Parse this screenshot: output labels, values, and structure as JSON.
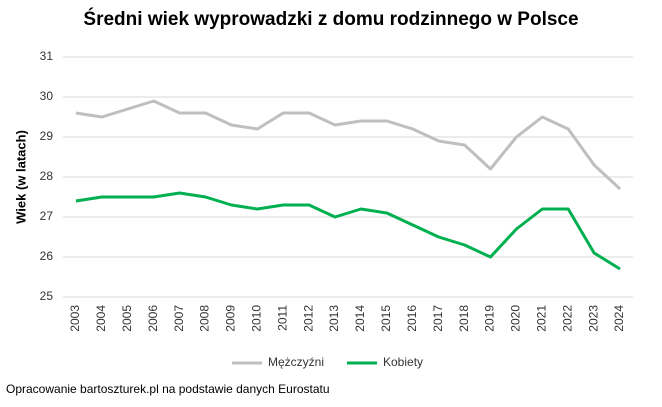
{
  "chart_data": {
    "type": "line",
    "title": "Średni wiek wyprowadzki z domu rodzinnego w Polsce",
    "y_label": "Wiek (w latach)",
    "source": "Opracowanie bartoszturek.pl na podstawie danych Eurostatu",
    "categories": [
      "2003",
      "2004",
      "2005",
      "2006",
      "2007",
      "2008",
      "2009",
      "2010",
      "2011",
      "2012",
      "2013",
      "2014",
      "2015",
      "2016",
      "2017",
      "2018",
      "2019",
      "2020",
      "2021",
      "2022",
      "2023",
      "2024"
    ],
    "series": [
      {
        "name": "Mężczyźni",
        "color": "#bfbfbf",
        "values": [
          29.6,
          29.5,
          29.7,
          29.9,
          29.6,
          29.6,
          29.3,
          29.2,
          29.6,
          29.6,
          29.3,
          29.4,
          29.4,
          29.2,
          28.9,
          28.8,
          28.2,
          29.0,
          29.5,
          29.2,
          28.3,
          27.7
        ]
      },
      {
        "name": "Kobiety",
        "color": "#00b050",
        "values": [
          27.4,
          27.5,
          27.5,
          27.5,
          27.6,
          27.5,
          27.3,
          27.2,
          27.3,
          27.3,
          27.0,
          27.2,
          27.1,
          26.8,
          26.5,
          26.3,
          26.0,
          26.7,
          27.2,
          27.2,
          26.1,
          25.7
        ]
      }
    ],
    "ylim": [
      25,
      31
    ],
    "yticks": [
      25,
      26,
      27,
      28,
      29,
      30,
      31
    ],
    "grid": true,
    "legend": "bottom"
  }
}
